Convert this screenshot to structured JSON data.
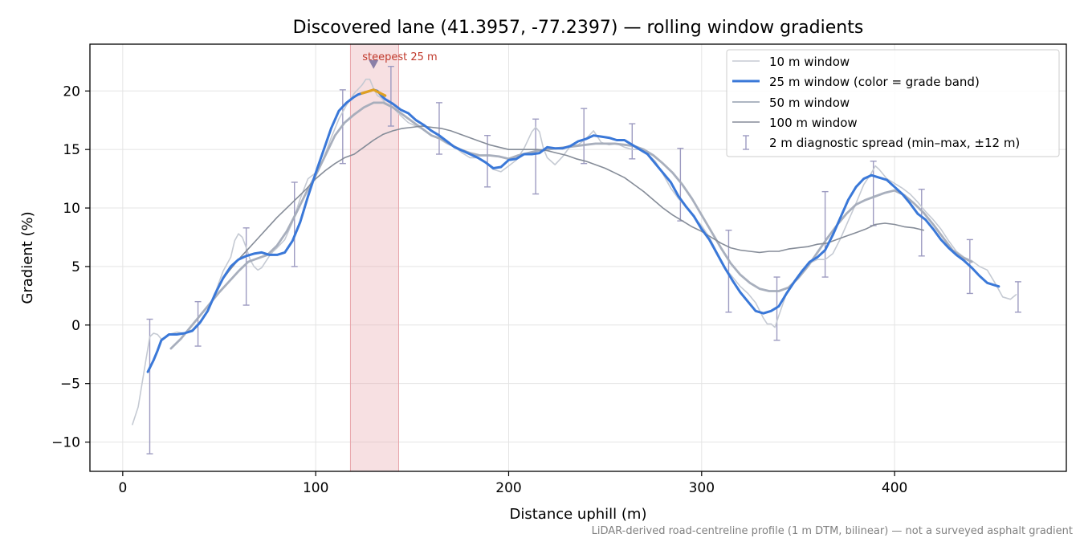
{
  "chart_data": {
    "type": "line",
    "title": "Discovered lane (41.3957, -77.2397) — rolling window gradients",
    "xlabel": "Distance uphill (m)",
    "ylabel": "Gradient (%)",
    "xlim": [
      -17,
      489
    ],
    "ylim": [
      -12.5,
      24.0
    ],
    "xticks": [
      0,
      100,
      200,
      300,
      400
    ],
    "yticks": [
      -10,
      -5,
      0,
      5,
      10,
      15,
      20
    ],
    "xtick_labels": [
      "0",
      "100",
      "200",
      "300",
      "400"
    ],
    "ytick_labels": [
      "−10",
      "−5",
      "0",
      "5",
      "10",
      "15",
      "20"
    ],
    "grid": true,
    "legend_position": "top-right",
    "colors": {
      "w10": "#c5cad3",
      "w25": "#3a78d8",
      "w25_steep": "#e0a020",
      "w50": "#a3abb9",
      "w100": "#858c98",
      "errorbar": "#9d9bc1",
      "band": "#e8a5ab",
      "annotation": "#c0392b",
      "marker": "#8a7fa8"
    },
    "series": [
      {
        "name": "10 m window",
        "x": [
          5,
          8,
          10,
          12,
          14,
          16,
          18,
          20,
          24,
          28,
          32,
          36,
          40,
          44,
          48,
          52,
          56,
          58,
          60,
          62,
          64,
          66,
          68,
          70,
          72,
          74,
          76,
          78,
          80,
          84,
          88,
          92,
          96,
          100,
          104,
          108,
          112,
          116,
          120,
          124,
          126,
          128,
          130,
          132,
          134,
          136,
          140,
          144,
          148,
          152,
          156,
          160,
          164,
          168,
          172,
          176,
          180,
          184,
          188,
          192,
          196,
          200,
          204,
          208,
          212,
          214,
          216,
          218,
          220,
          224,
          228,
          232,
          236,
          240,
          244,
          248,
          252,
          256,
          260,
          264,
          268,
          272,
          276,
          280,
          284,
          288,
          292,
          296,
          300,
          304,
          308,
          312,
          316,
          320,
          324,
          328,
          332,
          334,
          336,
          338,
          340,
          344,
          348,
          352,
          356,
          360,
          364,
          368,
          372,
          376,
          380,
          384,
          388,
          390,
          392,
          396,
          400,
          404,
          408,
          412,
          416,
          420,
          424,
          428,
          432,
          436,
          440,
          444,
          448,
          452,
          456,
          460,
          463
        ],
        "y": [
          -8.5,
          -7,
          -5,
          -3,
          -1,
          -0.7,
          -0.8,
          -1.2,
          -0.8,
          -0.6,
          -0.7,
          -0.4,
          0.3,
          1.2,
          2.8,
          4.6,
          5.8,
          7.2,
          7.8,
          7.5,
          6.6,
          5.6,
          5.0,
          4.7,
          4.9,
          5.4,
          5.9,
          6.3,
          6.6,
          7.3,
          8.8,
          10.8,
          12.5,
          13.0,
          14.2,
          16.0,
          17.6,
          18.8,
          19.8,
          20.5,
          21.0,
          21.0,
          20.2,
          19.6,
          19.4,
          19.0,
          18.6,
          17.9,
          17.3,
          17.0,
          16.7,
          16.2,
          15.9,
          15.5,
          15.2,
          14.7,
          14.3,
          14.3,
          13.9,
          13.3,
          13.1,
          13.6,
          14.1,
          15.1,
          16.5,
          16.9,
          16.5,
          15.1,
          14.3,
          13.7,
          14.4,
          15.3,
          15.4,
          15.9,
          16.6,
          15.6,
          15.4,
          15.5,
          15.2,
          15.0,
          15.0,
          14.6,
          14.0,
          12.9,
          11.7,
          10.8,
          10.1,
          9.2,
          8.5,
          7.5,
          6.2,
          4.9,
          4.1,
          3.3,
          2.7,
          1.9,
          0.6,
          0.1,
          0.1,
          -0.2,
          0.8,
          2.7,
          3.6,
          4.7,
          5.3,
          5.6,
          5.6,
          6.1,
          7.4,
          8.9,
          10.4,
          12.0,
          13.0,
          13.6,
          13.3,
          12.5,
          12.1,
          11.7,
          11.2,
          10.5,
          9.7,
          9.0,
          8.2,
          7.2,
          6.3,
          5.8,
          5.5,
          5.0,
          4.7,
          3.6,
          2.4,
          2.2,
          2.6
        ],
        "color": "#c5cad3"
      },
      {
        "name": "25 m window (color = grade band)",
        "x": [
          13,
          16,
          18,
          20,
          24,
          28,
          32,
          36,
          40,
          44,
          48,
          52,
          56,
          60,
          64,
          68,
          72,
          76,
          80,
          84,
          88,
          92,
          96,
          100,
          104,
          108,
          112,
          116,
          120,
          122,
          124,
          126,
          128,
          130,
          132,
          134,
          136,
          140,
          144,
          148,
          152,
          156,
          160,
          164,
          168,
          172,
          176,
          180,
          184,
          188,
          192,
          196,
          200,
          204,
          208,
          212,
          216,
          220,
          224,
          228,
          232,
          236,
          240,
          244,
          248,
          252,
          256,
          260,
          264,
          268,
          272,
          276,
          280,
          284,
          288,
          292,
          296,
          300,
          304,
          308,
          312,
          316,
          320,
          324,
          328,
          332,
          336,
          340,
          344,
          348,
          352,
          356,
          360,
          364,
          368,
          372,
          376,
          380,
          384,
          388,
          392,
          396,
          400,
          404,
          408,
          412,
          416,
          420,
          424,
          428,
          432,
          436,
          440,
          444,
          448,
          452,
          454
        ],
        "y": [
          -4.0,
          -3.0,
          -2.2,
          -1.3,
          -0.8,
          -0.8,
          -0.7,
          -0.5,
          0.2,
          1.2,
          2.7,
          4.0,
          5.0,
          5.6,
          5.9,
          6.1,
          6.2,
          6.0,
          6.0,
          6.2,
          7.2,
          8.8,
          11.0,
          13.0,
          14.9,
          16.8,
          18.3,
          19.0,
          19.5,
          19.7,
          19.8,
          19.9,
          20.0,
          20.1,
          20.0,
          19.6,
          19.3,
          18.9,
          18.4,
          18.1,
          17.5,
          17.1,
          16.6,
          16.2,
          15.7,
          15.2,
          14.9,
          14.6,
          14.3,
          13.9,
          13.4,
          13.5,
          14.1,
          14.2,
          14.6,
          14.6,
          14.7,
          15.2,
          15.1,
          15.1,
          15.3,
          15.7,
          15.9,
          16.2,
          16.1,
          16.0,
          15.8,
          15.8,
          15.4,
          15.0,
          14.6,
          13.8,
          13.0,
          12.2,
          11.0,
          10.1,
          9.3,
          8.2,
          7.3,
          6.1,
          4.9,
          3.8,
          2.8,
          2.0,
          1.2,
          1.0,
          1.2,
          1.6,
          2.7,
          3.7,
          4.6,
          5.4,
          5.8,
          6.4,
          7.7,
          9.2,
          10.7,
          11.8,
          12.5,
          12.8,
          12.6,
          12.4,
          11.8,
          11.2,
          10.4,
          9.5,
          9.0,
          8.2,
          7.3,
          6.6,
          6.0,
          5.5,
          4.9,
          4.2,
          3.6,
          3.4,
          3.3
        ],
        "color": "#3a78d8"
      },
      {
        "name": "50 m window",
        "x": [
          25,
          30,
          35,
          40,
          45,
          50,
          55,
          60,
          65,
          70,
          75,
          80,
          85,
          90,
          95,
          100,
          105,
          110,
          115,
          120,
          125,
          130,
          135,
          140,
          145,
          150,
          155,
          160,
          165,
          170,
          175,
          180,
          185,
          190,
          195,
          200,
          205,
          210,
          215,
          220,
          225,
          230,
          235,
          240,
          245,
          250,
          255,
          260,
          265,
          270,
          275,
          280,
          285,
          290,
          295,
          300,
          305,
          310,
          315,
          320,
          325,
          330,
          335,
          340,
          345,
          350,
          355,
          360,
          365,
          370,
          375,
          380,
          385,
          390,
          395,
          400,
          405,
          410,
          415,
          420,
          425,
          430,
          435,
          440
        ],
        "y": [
          -2.0,
          -1.2,
          -0.2,
          0.8,
          1.8,
          2.8,
          3.7,
          4.6,
          5.4,
          5.7,
          6.0,
          6.8,
          8.0,
          9.6,
          11.3,
          12.8,
          14.5,
          16.2,
          17.3,
          18.0,
          18.6,
          19.0,
          19.0,
          18.6,
          18.0,
          17.4,
          16.8,
          16.2,
          15.9,
          15.4,
          15.0,
          14.7,
          14.5,
          14.5,
          14.4,
          14.2,
          14.5,
          14.7,
          14.9,
          15.0,
          15.1,
          15.2,
          15.3,
          15.4,
          15.5,
          15.5,
          15.5,
          15.4,
          15.3,
          15.0,
          14.5,
          13.8,
          13.0,
          12.0,
          10.8,
          9.4,
          8.0,
          6.6,
          5.3,
          4.3,
          3.6,
          3.1,
          2.9,
          2.9,
          3.2,
          4.0,
          5.0,
          6.2,
          7.4,
          8.5,
          9.5,
          10.3,
          10.7,
          11.0,
          11.3,
          11.5,
          11.1,
          10.4,
          9.6,
          8.6,
          7.5,
          6.4,
          5.8,
          5.4
        ],
        "color": "#a3abb9"
      },
      {
        "name": "100 m window",
        "x": [
          50,
          55,
          60,
          65,
          70,
          75,
          80,
          85,
          90,
          95,
          100,
          105,
          110,
          115,
          120,
          125,
          130,
          135,
          140,
          145,
          150,
          155,
          160,
          165,
          170,
          175,
          180,
          185,
          190,
          195,
          200,
          205,
          210,
          215,
          220,
          225,
          230,
          235,
          240,
          245,
          250,
          255,
          260,
          265,
          270,
          275,
          280,
          285,
          290,
          295,
          300,
          305,
          310,
          315,
          320,
          325,
          330,
          335,
          340,
          345,
          350,
          355,
          360,
          365,
          370,
          375,
          380,
          385,
          390,
          395,
          400,
          405,
          410,
          415
        ],
        "y": [
          3.5,
          4.6,
          5.6,
          6.5,
          7.4,
          8.3,
          9.2,
          10.0,
          10.8,
          11.6,
          12.5,
          13.2,
          13.8,
          14.3,
          14.6,
          15.2,
          15.8,
          16.3,
          16.6,
          16.8,
          16.9,
          17.0,
          16.9,
          16.8,
          16.6,
          16.3,
          16.0,
          15.7,
          15.4,
          15.2,
          15.0,
          15.0,
          15.0,
          15.0,
          14.9,
          14.7,
          14.5,
          14.2,
          14.0,
          13.7,
          13.4,
          13.0,
          12.6,
          12.0,
          11.4,
          10.7,
          10.0,
          9.4,
          8.9,
          8.4,
          8.0,
          7.5,
          7.0,
          6.6,
          6.4,
          6.3,
          6.2,
          6.3,
          6.3,
          6.5,
          6.6,
          6.7,
          6.9,
          7.0,
          7.3,
          7.6,
          7.9,
          8.2,
          8.6,
          8.7,
          8.6,
          8.4,
          8.3,
          8.1
        ],
        "color": "#858c98"
      }
    ],
    "steepest": {
      "label": "steepest 25 m",
      "x_range": [
        118,
        143
      ],
      "x_peak": [
        124,
        130,
        136
      ],
      "y_peak": [
        19.8,
        20.1,
        19.6
      ],
      "marker": {
        "x": 130,
        "y": 22.3
      }
    },
    "errorbars": {
      "name": "2 m diagnostic spread (min–max, ±12 m)",
      "x": [
        14,
        39,
        64,
        89,
        114,
        139,
        164,
        189,
        214,
        239,
        264,
        289,
        314,
        339,
        364,
        389,
        414,
        439,
        464
      ],
      "low": [
        -11.0,
        -1.8,
        1.7,
        5.0,
        13.8,
        17.0,
        14.6,
        11.8,
        11.2,
        13.8,
        14.2,
        8.9,
        1.1,
        -1.3,
        4.1,
        8.5,
        5.9,
        2.7,
        1.1
      ],
      "high": [
        0.5,
        2.0,
        8.3,
        12.2,
        20.1,
        22.1,
        19.0,
        16.2,
        17.6,
        18.5,
        17.2,
        15.1,
        8.1,
        4.1,
        11.4,
        14.0,
        11.6,
        7.3,
        3.7
      ]
    },
    "footnote": "LiDAR-derived road-centreline profile (1 m DTM, bilinear) — not a surveyed asphalt gradient"
  }
}
